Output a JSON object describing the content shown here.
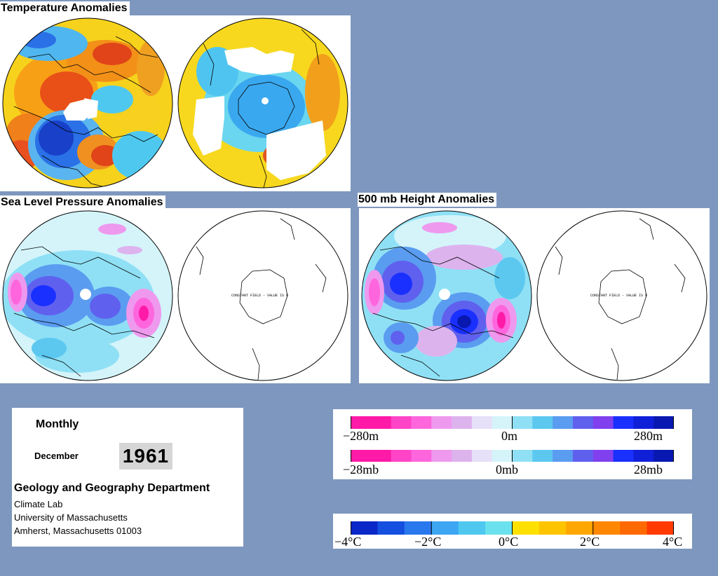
{
  "temperature": {
    "title": "Temperature Anomalies"
  },
  "slp": {
    "title": "Sea Level Pressure Anomalies",
    "sh_note": "CONSTANT FIELD - VALUE IS 0"
  },
  "height500": {
    "title": "500 mb Height Anomalies",
    "sh_note": "CONSTANT FIELD - VALUE IS 0"
  },
  "info": {
    "period": "Monthly",
    "month": "December",
    "year": "1961",
    "department": "Geology and Geography Department",
    "lab": "Climate Lab",
    "university": "University of Massachusetts",
    "address": "Amherst, Massachusetts 01003"
  },
  "height_scale": {
    "colors": [
      "#ff1aa8",
      "#ff1aa8",
      "#ff44c8",
      "#ff66dd",
      "#ee99ee",
      "#ddb3ee",
      "#e6e0f8",
      "#d4f4fa",
      "#8fe0f5",
      "#5cc8f0",
      "#5a9cf0",
      "#6060ee",
      "#8040ee",
      "#1a30ff",
      "#1020d8",
      "#0818b0"
    ],
    "labels": [
      "−280m",
      "0m",
      "280m"
    ]
  },
  "pressure_scale": {
    "colors": [
      "#ff1aa8",
      "#ff1aa8",
      "#ff44c8",
      "#ff66dd",
      "#ee99ee",
      "#ddb3ee",
      "#e6e0f8",
      "#d4f4fa",
      "#8fe0f5",
      "#5cc8f0",
      "#5a9cf0",
      "#6060ee",
      "#8040ee",
      "#1a30ff",
      "#1020d8",
      "#0818b0"
    ],
    "labels": [
      "−28mb",
      "0mb",
      "28mb"
    ]
  },
  "temp_scale": {
    "colors": [
      "#0a28c8",
      "#1450e0",
      "#2a78ee",
      "#3ca6f2",
      "#4fc8f0",
      "#6ae2ee",
      "#ffe100",
      "#ffc400",
      "#ffa600",
      "#ff8800",
      "#ff6a00",
      "#ff3a00"
    ],
    "labels": [
      "−4°C",
      "−2°C",
      "0°C",
      "2°C",
      "4°C"
    ]
  }
}
